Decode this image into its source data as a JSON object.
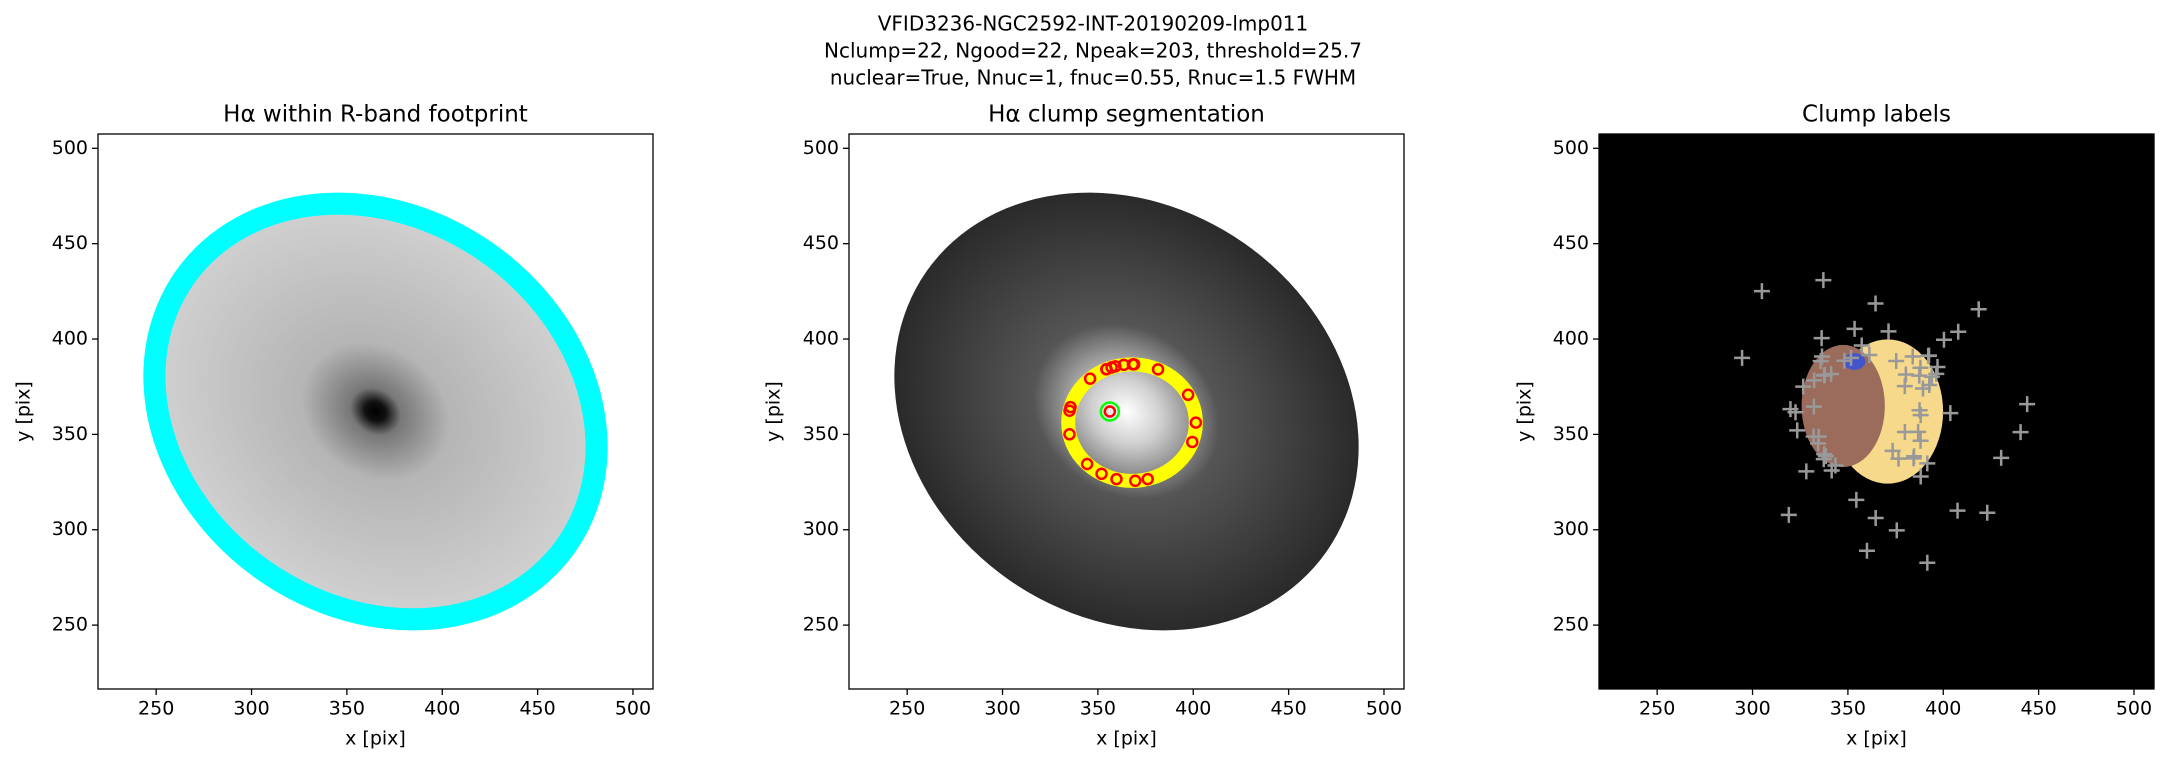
{
  "suptitle": [
    "VFID3236-NGC2592-INT-20190209-lmp011",
    "Nclump=22, Ngood=22, Npeak=203, threshold=25.7",
    "nuclear=True, Nnuc=1, fnuc=0.55, Rnuc=1.5 FWHM"
  ],
  "chart_data": [
    {
      "type": "image",
      "title": "Hα within R-band footprint",
      "xlabel": "x [pix]",
      "ylabel": "y [pix]",
      "xlim": [
        219.5,
        510.5
      ],
      "ylim": [
        216.5,
        507.5
      ],
      "xticks": [
        250,
        300,
        350,
        400,
        450,
        500
      ],
      "yticks": [
        250,
        300,
        350,
        400,
        450,
        500
      ]
    },
    {
      "type": "image",
      "title": "Hα clump segmentation",
      "xlabel": "x [pix]",
      "ylabel": "y [pix]",
      "xlim": [
        219.5,
        510.5
      ],
      "ylim": [
        216.5,
        507.5
      ],
      "xticks": [
        250,
        300,
        350,
        400,
        450,
        500
      ],
      "yticks": [
        250,
        300,
        350,
        400,
        450,
        500
      ]
    },
    {
      "type": "image",
      "title": "Clump labels",
      "xlabel": "x [pix]",
      "ylabel": "y [pix]",
      "xlim": [
        219.5,
        510.5
      ],
      "ylim": [
        216.5,
        507.5
      ],
      "xticks": [
        250,
        300,
        350,
        400,
        450,
        500
      ],
      "yticks": [
        250,
        300,
        350,
        400,
        450,
        500
      ]
    }
  ]
}
